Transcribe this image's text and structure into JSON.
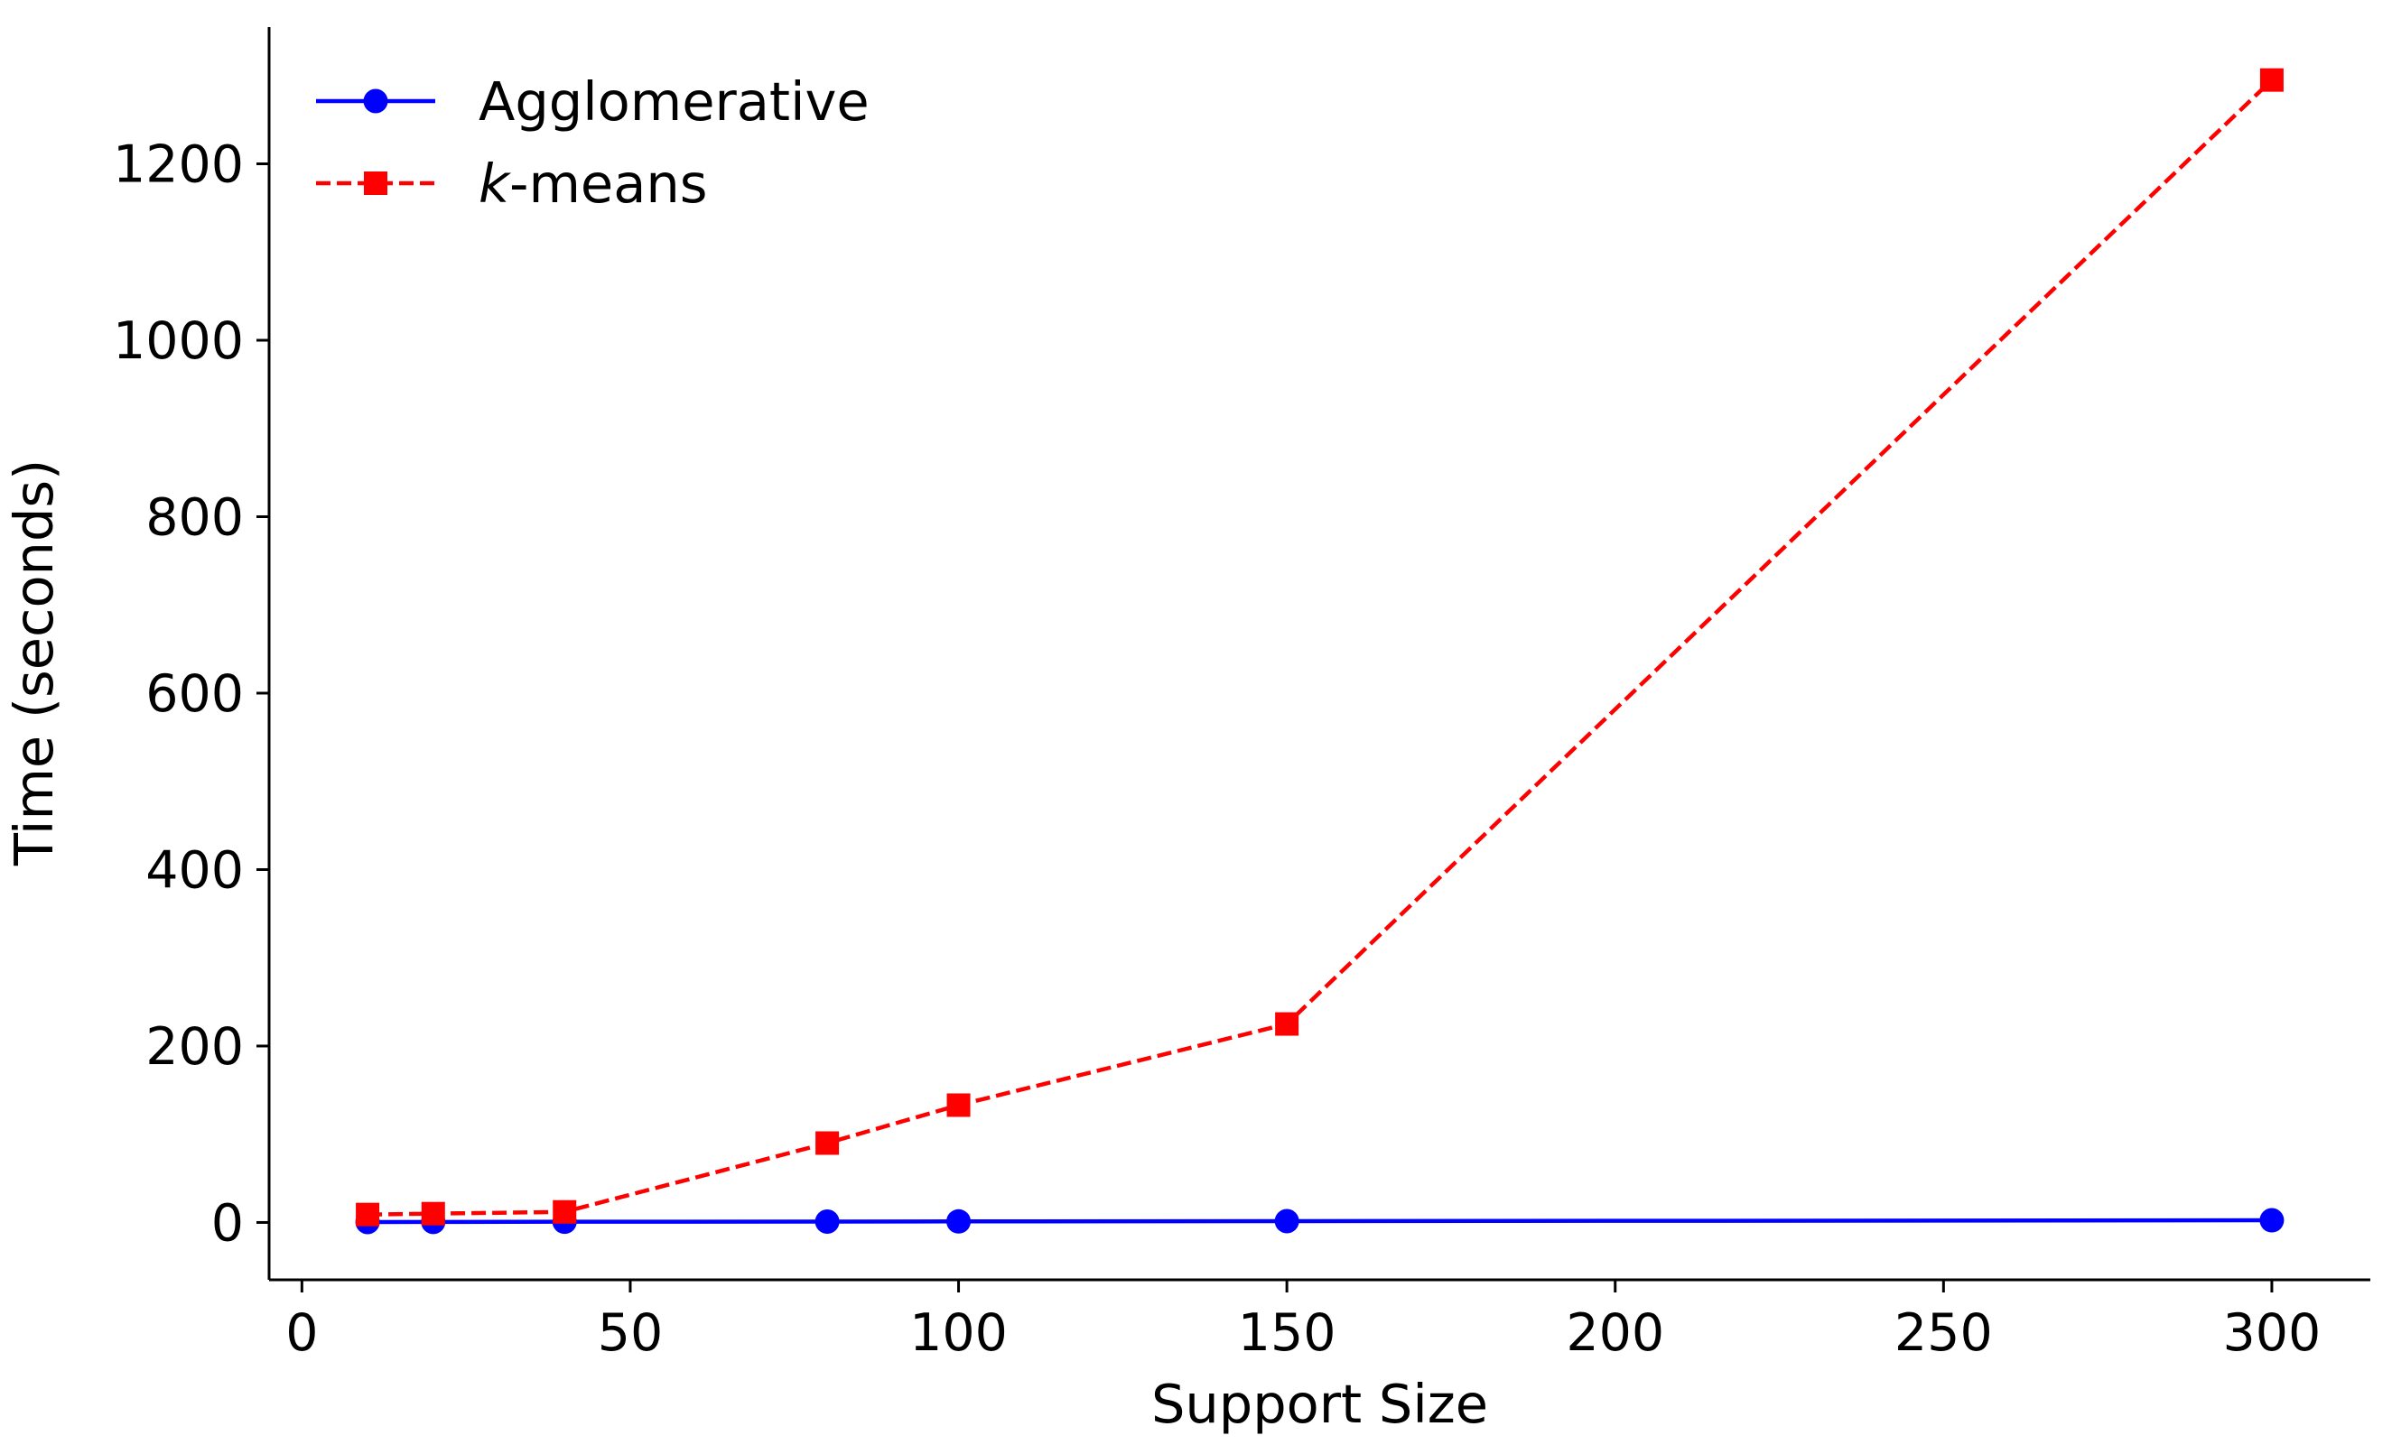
{
  "chart_data": {
    "type": "line",
    "title": "",
    "xlabel": "Support Size",
    "ylabel": "Time (seconds)",
    "xlim": [
      -5,
      315
    ],
    "ylim": [
      -65,
      1355
    ],
    "xticks": [
      0,
      50,
      100,
      150,
      200,
      250,
      300
    ],
    "yticks": [
      0,
      200,
      400,
      600,
      800,
      1000,
      1200
    ],
    "grid": false,
    "legend_position": "top-left",
    "series": [
      {
        "name": "Agglomerative",
        "color": "#0000ff",
        "line_style": "solid",
        "marker": "circle",
        "x": [
          10,
          20,
          40,
          80,
          100,
          150,
          300
        ],
        "y": [
          0.5,
          0.6,
          0.8,
          1.0,
          1.2,
          1.5,
          2.5
        ]
      },
      {
        "name": "k-means",
        "name_italic_prefix": "k",
        "name_suffix": "-means",
        "color": "#ff0000",
        "line_style": "dashed",
        "marker": "square",
        "x": [
          10,
          20,
          40,
          80,
          100,
          150,
          300
        ],
        "y": [
          9,
          10,
          12,
          90,
          133,
          225,
          1295
        ]
      }
    ]
  }
}
